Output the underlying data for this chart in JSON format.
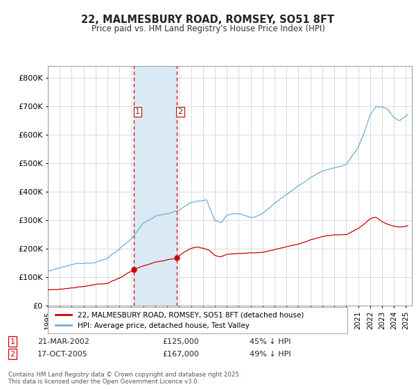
{
  "title": "22, MALMESBURY ROAD, ROMSEY, SO51 8FT",
  "subtitle": "Price paid vs. HM Land Registry's House Price Index (HPI)",
  "hpi_color": "#6baed6",
  "price_color": "#cc0000",
  "highlight_color": "#daeaf5",
  "vline_color": "#cc0000",
  "background_color": "#ffffff",
  "grid_color": "#cccccc",
  "transactions": [
    {
      "id": 1,
      "date_num": 2002.22,
      "price": 125000,
      "label": "21-MAR-2002",
      "pct": "45% ↓ HPI"
    },
    {
      "id": 2,
      "date_num": 2005.8,
      "price": 167000,
      "label": "17-OCT-2005",
      "pct": "49% ↓ HPI"
    }
  ],
  "legend_hpi": "HPI: Average price, detached house, Test Valley",
  "legend_price": "22, MALMESBURY ROAD, ROMSEY, SO51 8FT (detached house)",
  "footnote": "Contains HM Land Registry data © Crown copyright and database right 2025.\nThis data is licensed under the Open Government Licence v3.0.",
  "ylim": [
    0,
    840000
  ],
  "yticks": [
    0,
    100000,
    200000,
    300000,
    400000,
    500000,
    600000,
    700000,
    800000
  ],
  "xlim_start": 1995.0,
  "xlim_end": 2025.5
}
